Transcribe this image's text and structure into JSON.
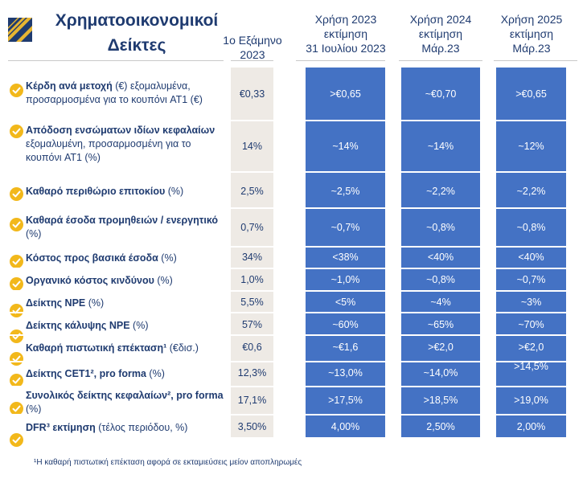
{
  "title": {
    "line1": "Χρηματοοικονομικοί",
    "line2": "Δείκτες"
  },
  "columns": [
    {
      "line1": "1ο Εξάμηνο",
      "line2": "2023"
    },
    {
      "line1": "Χρήση 2023",
      "line2": "εκτίμηση",
      "line3": "31 Ιουλίου 2023"
    },
    {
      "line1": "Χρήση 2024",
      "line2": "εκτίμηση",
      "line3": "Μάρ.23"
    },
    {
      "line1": "Χρήση 2025",
      "line2": "εκτίμηση",
      "line3": "Μάρ.23"
    }
  ],
  "rows": [
    {
      "bold": "Κέρδη ανά μετοχή",
      "rest": " (€) εξομαλυμένα, προσαρμοσμένα για το κουπόνι AT1 (€)",
      "values": [
        "€0,33",
        ">€0,65",
        "~€0,70",
        ">€0,65"
      ]
    },
    {
      "bold": "Απόδοση ενσώματων ιδίων κεφαλαίων",
      "rest": " εξομαλυμένη, προσαρμοσμένη για το κουπόνι AT1 (%)",
      "values": [
        "14%",
        "~14%",
        "~14%",
        "~12%"
      ]
    },
    {
      "bold": "Καθαρό περιθώριο επιτοκίου",
      "rest": " (%)",
      "values": [
        "2,5%",
        "~2,5%",
        "~2,2%",
        "~2,2%"
      ]
    },
    {
      "bold": "Καθαρά έσοδα προμηθειών / ενεργητικό",
      "rest": " (%)",
      "values": [
        "0,7%",
        "~0,7%",
        "~0,8%",
        "~0,8%"
      ]
    },
    {
      "bold": "Κόστος προς βασικά έσοδα",
      "rest": " (%)",
      "values": [
        "34%",
        "<38%",
        "<40%",
        "<40%"
      ]
    },
    {
      "bold": "Οργανικό κόστος κινδύνου",
      "rest": " (%)",
      "values": [
        "1,0%",
        "~1,0%",
        "~0,8%",
        "~0,7%"
      ]
    },
    {
      "bold": "Δείκτης NPE",
      "rest": " (%)",
      "values": [
        "5,5%",
        "<5%",
        "~4%",
        "~3%"
      ]
    },
    {
      "bold": "Δείκτης κάλυψης NPE",
      "rest": "  (%)",
      "values": [
        "57%",
        "~60%",
        "~65%",
        "~70%"
      ]
    },
    {
      "bold": "Καθαρή πιστωτική επέκταση¹",
      "rest": " (€δισ.)",
      "values": [
        "€0,6",
        "~€1,6",
        ">€2,0",
        ">€2,0"
      ]
    },
    {
      "bold": "Δείκτης CET1², pro forma",
      "rest": " (%)",
      "values": [
        "12,3%",
        "~13,0%",
        "~14,0%",
        ">14,5%"
      ]
    },
    {
      "bold": "Συνολικός δείκτης κεφαλαίων², pro forma",
      "rest": " (%)",
      "values": [
        "17,1%",
        ">17,5%",
        ">18,5%",
        ">19,0%"
      ]
    },
    {
      "bold": "DFR³ εκτίμηση",
      "rest": " (τέλος περιόδου, %)",
      "values": [
        "3,50%",
        "4,00%",
        "2,50%",
        "2,00%"
      ]
    }
  ],
  "footnote": "¹Η καθαρή πιστωτική επέκταση αφορά σε εκταμιεύσεις μείον αποπληρωμές",
  "colors": {
    "navy": "#1f3b70",
    "blue": "#4472c4",
    "grey": "#eeeae5",
    "check": "#f2b81b"
  },
  "icons": {
    "logo": "bank-logo-icon",
    "check": "checkmark-icon"
  }
}
